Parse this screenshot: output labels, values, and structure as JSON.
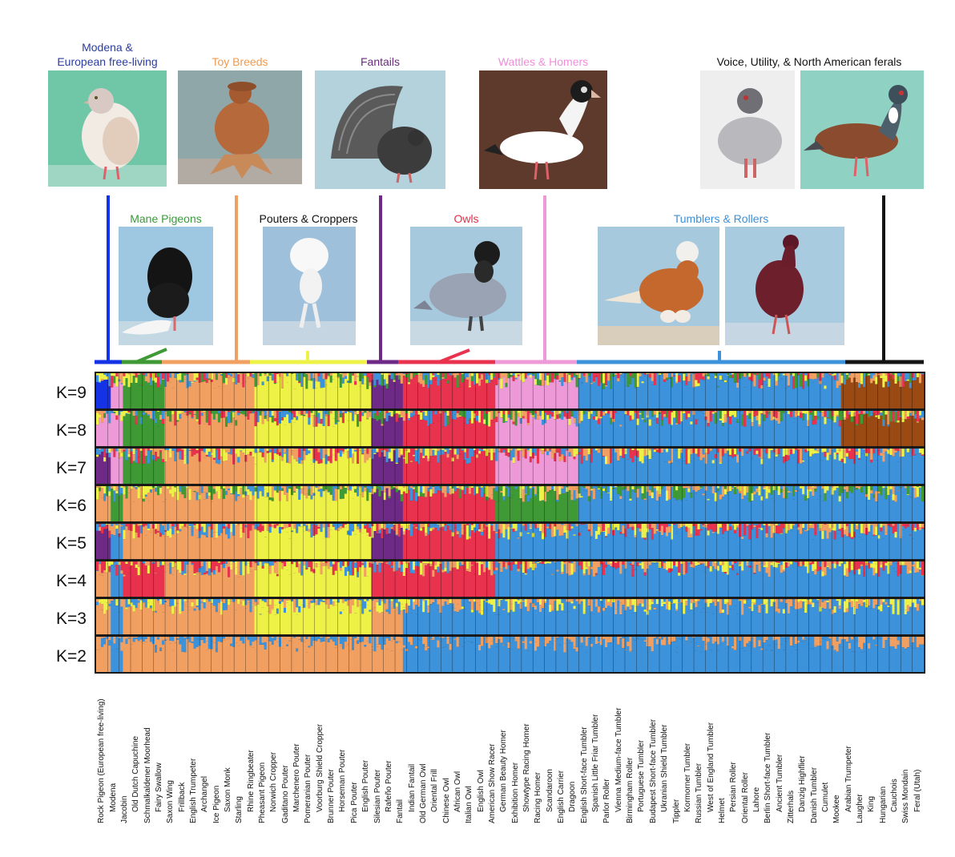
{
  "groups_top": [
    {
      "id": "modena",
      "lines": [
        "Modena &",
        "European free-living"
      ],
      "color": "#2b3d9e"
    },
    {
      "id": "toy",
      "lines": [
        "Toy Breeds"
      ],
      "color": "#f29a4c"
    },
    {
      "id": "fantails",
      "lines": [
        "Fantails"
      ],
      "color": "#6b2a7e"
    },
    {
      "id": "wattles",
      "lines": [
        "Wattles & Homers"
      ],
      "color": "#ee8fd8"
    },
    {
      "id": "voice",
      "lines": [
        "Voice, Utility, & North American ferals"
      ],
      "color": "#111111"
    }
  ],
  "groups_mid": [
    {
      "id": "mane",
      "lines": [
        "Mane Pigeons"
      ],
      "color": "#3a9a3a"
    },
    {
      "id": "pouters",
      "lines": [
        "Pouters & Croppers"
      ],
      "color": "#111111"
    },
    {
      "id": "owls",
      "lines": [
        "Owls"
      ],
      "color": "#e0304a"
    },
    {
      "id": "tumblers",
      "lines": [
        "Tumblers & Rollers"
      ],
      "color": "#3b8fd8"
    }
  ],
  "colors": {
    "blue_dark": "#1432e6",
    "orange": "#f2a062",
    "green": "#3f9a36",
    "yellow": "#eef247",
    "purple": "#6e2a86",
    "red": "#e8324e",
    "pink": "#ee9ad8",
    "blue": "#3d93db",
    "brown": "#9a4a12",
    "black": "#141414"
  },
  "k_labels": [
    "K=9",
    "K=8",
    "K=7",
    "K=6",
    "K=5",
    "K=4",
    "K=3",
    "K=2"
  ],
  "breeds": [
    "Rock Pigeon (European free-living)",
    "Modena",
    "Jacobin",
    "Old Dutch Capuchine",
    "Schmalkaldener Moorhead",
    "Fairy Swallow",
    "Saxon Wing",
    "Frillback",
    "English Trumpeter",
    "Archangel",
    "Ice Pigeon",
    "Saxon Monk",
    "Starling",
    "Rhine Ringbeater",
    "Pheasant Pigeon",
    "Norwich Cropper",
    "Gaditano Pouter",
    "Marchenero Pouter",
    "Pomeranian Pouter",
    "Voorburg Shield Cropper",
    "Brunner Pouter",
    "Horseman Pouter",
    "Pica Pouter",
    "English Pouter",
    "Silesian Pouter",
    "Rafeño Pouter",
    "Fantail",
    "Indian Fantail",
    "Old German Owl",
    "Oriental Frill",
    "Chinese Owl",
    "African Owl",
    "Italian Owl",
    "English Owl",
    "American Show Racer",
    "German Beauty Homer",
    "Exhibition Homer",
    "Showtype Racing Homer",
    "Racing Homer",
    "Scandaroon",
    "English Carrier",
    "Dragoon",
    "English Short-face Tumbler",
    "Spanish Little Friar Tumbler",
    "Parlor Roller",
    "Vienna Medium-face Tumbler",
    "Birmingham Roller",
    "Portuguese Tumbler",
    "Budapest Short-face Tumbler",
    "Ukranian Shield Tumbler",
    "Tippler",
    "Kormorner Tumbler",
    "Russian Tumbler",
    "West of England Tumbler",
    "Helmet",
    "Persian Roller",
    "Oriental Roller",
    "Lahore",
    "Berlin Short-face Tumbler",
    "Ancient Tumbler",
    "Zitterhals",
    "Danzig Highflier",
    "Danish Tumbler",
    "Cumulet",
    "Mookee",
    "Arabian Trumpeter",
    "Laugher",
    "King",
    "Hungarian",
    "Cauchois",
    "Swiss Mondain",
    "Feral (Utah)"
  ]
}
